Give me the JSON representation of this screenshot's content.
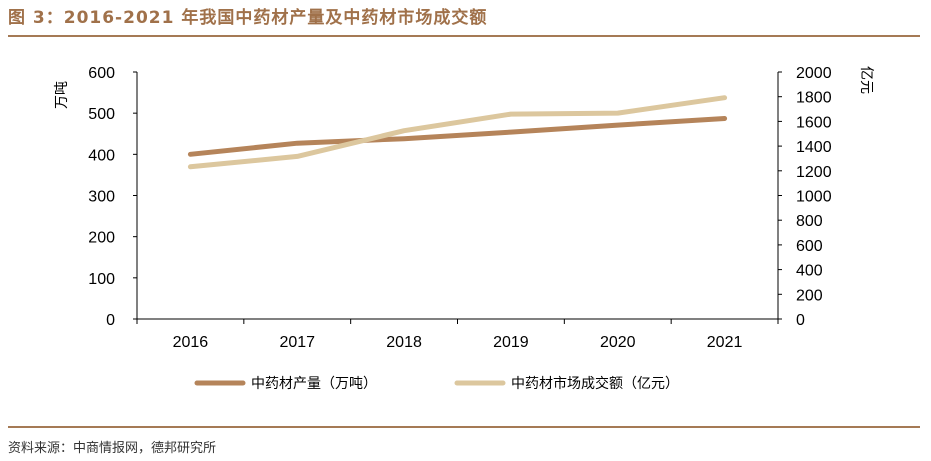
{
  "title": "图 3：2016-2021 年我国中药材产量及中药材市场成交额",
  "source": "资料来源：中商情报网，德邦研究所",
  "chart_data": {
    "type": "line",
    "title": "图 3：2016-2021 年我国中药材产量及中药材市场成交额",
    "categories": [
      "2016",
      "2017",
      "2018",
      "2019",
      "2020",
      "2021"
    ],
    "y_left": {
      "label": "万吨",
      "ylim": [
        0,
        600
      ],
      "ticks": [
        "0",
        "100",
        "200",
        "300",
        "400",
        "500",
        "600"
      ]
    },
    "y_right": {
      "label": "亿元",
      "ylim": [
        0,
        2000
      ],
      "ticks": [
        "0",
        "200",
        "400",
        "600",
        "800",
        "1000",
        "1200",
        "1400",
        "1600",
        "1800",
        "2000"
      ]
    },
    "grid": false,
    "legend": "bottom",
    "series": [
      {
        "name": "中药材产量（万吨）",
        "axis": "left",
        "color": "#b5845a",
        "values": [
          400,
          427,
          438,
          454,
          471,
          487
        ]
      },
      {
        "name": "中药材市场成交额（亿元）",
        "axis": "right",
        "color": "#dcc79e",
        "values": [
          1232,
          1317,
          1525,
          1659,
          1667,
          1792
        ]
      }
    ]
  }
}
